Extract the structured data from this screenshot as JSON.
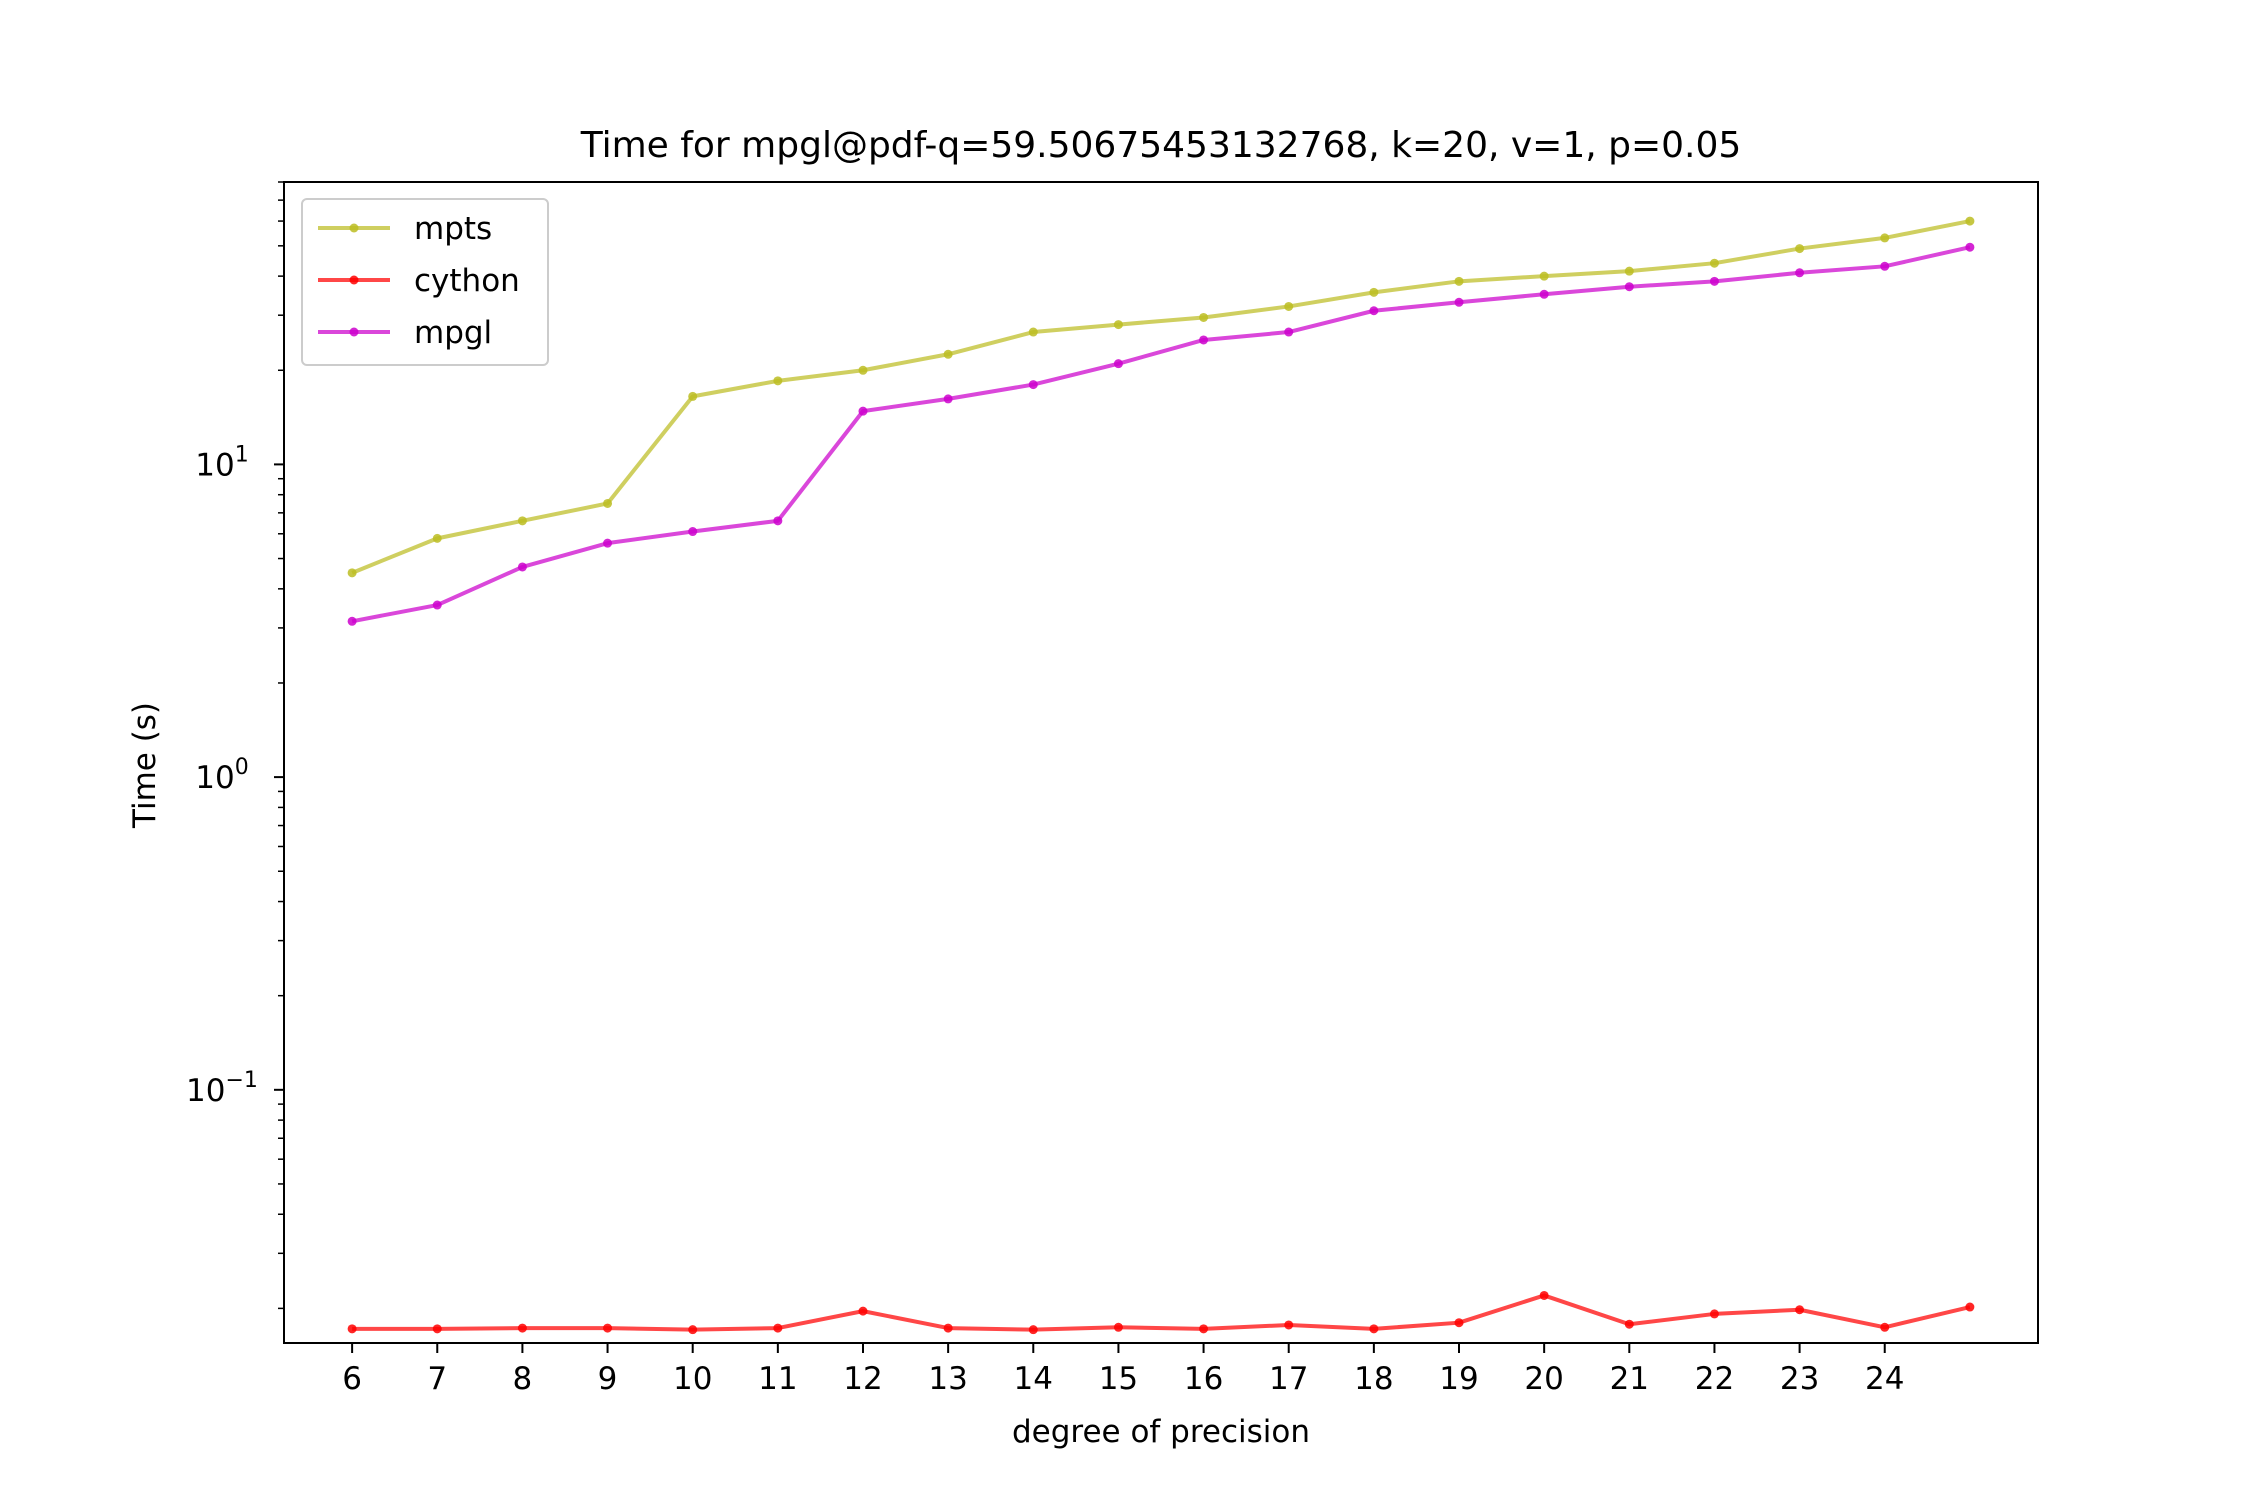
{
  "chart_data": {
    "type": "line",
    "title": "Time for mpgl@pdf-q=59.50675453132768, k=20, v=1, p=0.05",
    "xlabel": "degree of precision",
    "ylabel": "Time (s)",
    "yscale": "log",
    "ylim": [
      0.0155,
      80
    ],
    "xlim": [
      5.2,
      25.8
    ],
    "xticks": [
      6,
      7,
      8,
      9,
      10,
      11,
      12,
      13,
      14,
      15,
      16,
      17,
      18,
      19,
      20,
      21,
      22,
      23,
      24
    ],
    "yticks": [
      {
        "value": 0.1,
        "base": "10",
        "exp": "−1"
      },
      {
        "value": 1,
        "base": "10",
        "exp": "0"
      },
      {
        "value": 10,
        "base": "10",
        "exp": "1"
      }
    ],
    "x": [
      6,
      7,
      8,
      9,
      10,
      11,
      12,
      13,
      14,
      15,
      16,
      17,
      18,
      19,
      20,
      21,
      22,
      23,
      24,
      25
    ],
    "series": [
      {
        "name": "mpts",
        "color": "#bcbd22",
        "values": [
          4.5,
          5.8,
          6.6,
          7.5,
          16.5,
          18.5,
          20.0,
          22.5,
          26.5,
          28.0,
          29.5,
          32.0,
          35.5,
          38.5,
          40.0,
          41.5,
          44.0,
          49.0,
          53.0,
          60.0
        ]
      },
      {
        "name": "cython",
        "color": "#ff0000",
        "values": [
          0.0172,
          0.0172,
          0.0173,
          0.0173,
          0.0171,
          0.0173,
          0.0196,
          0.0173,
          0.0171,
          0.0174,
          0.0172,
          0.0177,
          0.0172,
          0.018,
          0.022,
          0.0178,
          0.0192,
          0.0198,
          0.0174,
          0.0202
        ]
      },
      {
        "name": "mpgl",
        "color": "#cc00cc",
        "values": [
          3.15,
          3.55,
          4.7,
          5.6,
          6.1,
          6.6,
          14.8,
          16.2,
          18.0,
          21.0,
          25.0,
          26.5,
          31.0,
          33.0,
          35.0,
          37.0,
          38.5,
          41.0,
          43.0,
          49.5
        ]
      }
    ],
    "legend": {
      "position": "upper-left",
      "entries": [
        "mpts",
        "cython",
        "mpgl"
      ]
    },
    "grid": false
  }
}
